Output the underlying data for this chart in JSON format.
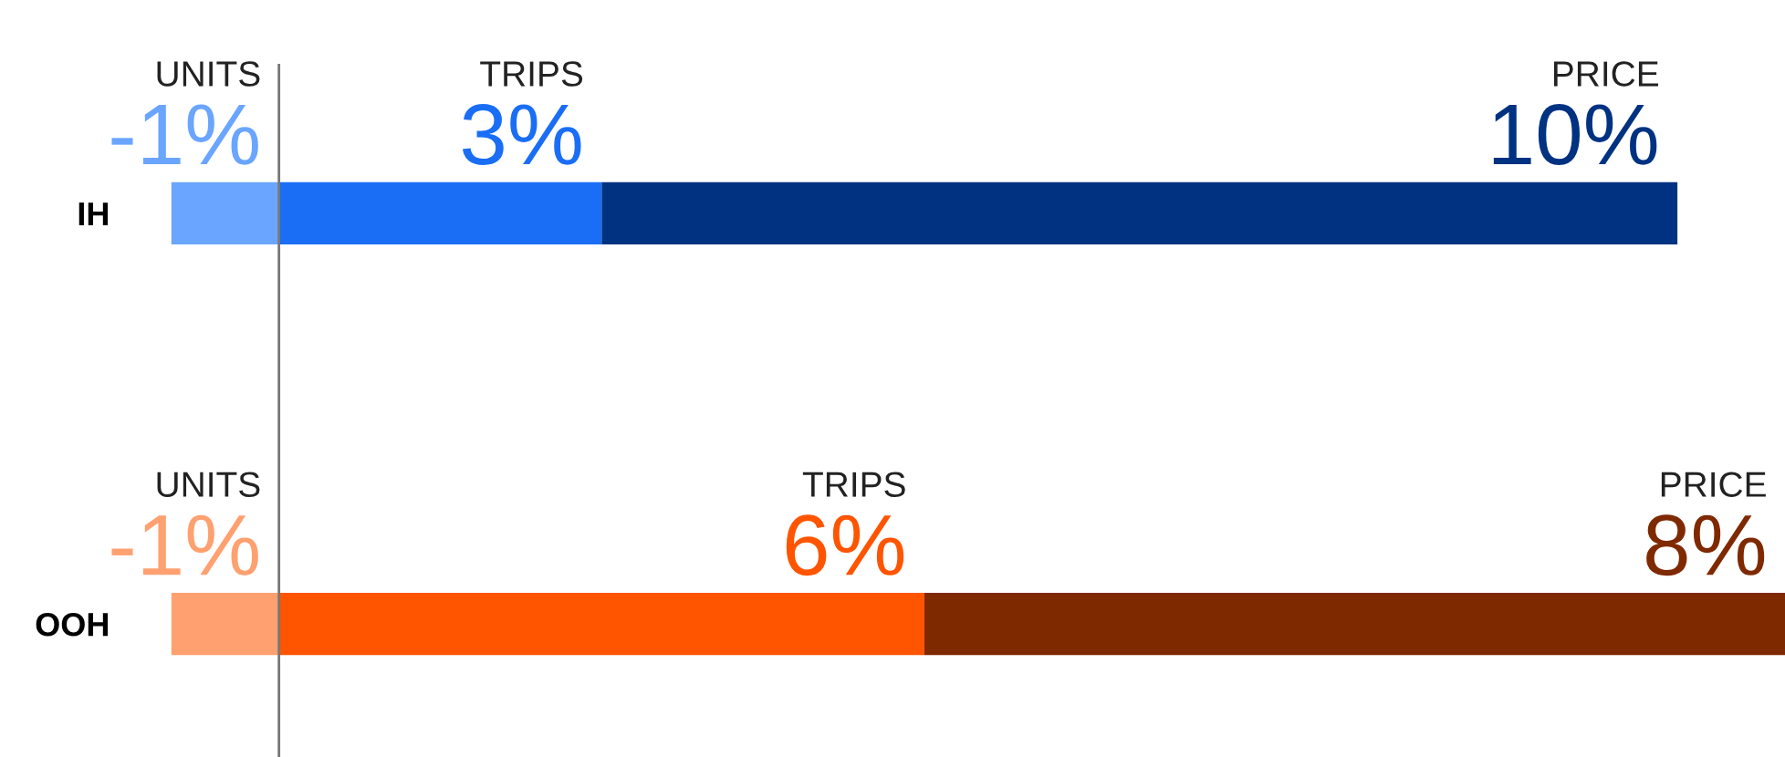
{
  "chart_data": {
    "type": "bar",
    "orientation": "horizontal",
    "stacked": true,
    "categories": [
      "IH",
      "OOH"
    ],
    "series": [
      {
        "name": "UNITS",
        "colors": [
          "#6aa5ff",
          "#ffa070"
        ],
        "values": [
          -1,
          -1
        ],
        "value_labels": [
          "-1%",
          "-1%"
        ]
      },
      {
        "name": "TRIPS",
        "colors": [
          "#1a6ef5",
          "#ff5400"
        ],
        "values": [
          3,
          6
        ],
        "value_labels": [
          "3%",
          "6%"
        ]
      },
      {
        "name": "PRICE",
        "colors": [
          "#003282",
          "#7f2900"
        ],
        "values": [
          10,
          8
        ],
        "value_labels": [
          "10%",
          "8%"
        ]
      }
    ]
  }
}
